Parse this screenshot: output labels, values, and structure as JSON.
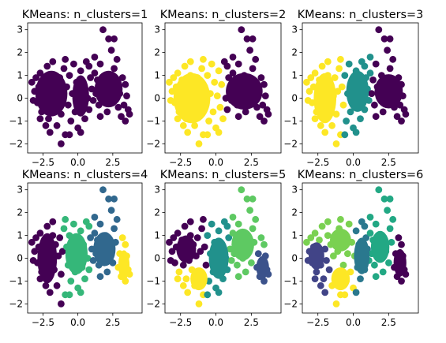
{
  "chart_data": [
    {
      "type": "scatter",
      "title": "KMeans: n_clusters=1",
      "n_clusters": 1,
      "xlim": [
        -3.6,
        4.6
      ],
      "ylim": [
        -2.4,
        3.3
      ],
      "xticks": [
        -2.5,
        0.0,
        2.5
      ],
      "xtick_labels": [
        "−2.5",
        "0.0",
        "2.5"
      ],
      "yticks": [
        -2,
        -1,
        0,
        1,
        2,
        3
      ],
      "ytick_labels": [
        "−2",
        "−1",
        "0",
        "1",
        "2",
        "3"
      ],
      "cluster_colors": [
        "#440154"
      ],
      "grid": false
    },
    {
      "type": "scatter",
      "title": "KMeans: n_clusters=2",
      "n_clusters": 2,
      "xlim": [
        -3.6,
        4.6
      ],
      "ylim": [
        -2.4,
        3.3
      ],
      "xticks": [
        -2.5,
        0.0,
        2.5
      ],
      "xtick_labels": [
        "−2.5",
        "0.0",
        "2.5"
      ],
      "yticks": [
        -2,
        -1,
        0,
        1,
        2,
        3
      ],
      "ytick_labels": [
        "−2",
        "−1",
        "0",
        "1",
        "2",
        "3"
      ],
      "cluster_colors": [
        "#440154",
        "#fde725"
      ],
      "grid": false
    },
    {
      "type": "scatter",
      "title": "KMeans: n_clusters=3",
      "n_clusters": 3,
      "xlim": [
        -3.6,
        4.6
      ],
      "ylim": [
        -2.4,
        3.3
      ],
      "xticks": [
        -2.5,
        0.0,
        2.5
      ],
      "xtick_labels": [
        "−2.5",
        "0.0",
        "2.5"
      ],
      "yticks": [
        -2,
        -1,
        0,
        1,
        2,
        3
      ],
      "ytick_labels": [
        "−2",
        "−1",
        "0",
        "1",
        "2",
        "3"
      ],
      "cluster_colors": [
        "#440154",
        "#21918c",
        "#fde725"
      ],
      "grid": false
    },
    {
      "type": "scatter",
      "title": "KMeans: n_clusters=4",
      "n_clusters": 4,
      "xlim": [
        -3.6,
        4.6
      ],
      "ylim": [
        -2.4,
        3.3
      ],
      "xticks": [
        -2.5,
        0.0,
        2.5
      ],
      "xtick_labels": [
        "−2.5",
        "0.0",
        "2.5"
      ],
      "yticks": [
        -2,
        -1,
        0,
        1,
        2,
        3
      ],
      "ytick_labels": [
        "−2",
        "−1",
        "0",
        "1",
        "2",
        "3"
      ],
      "cluster_colors": [
        "#440154",
        "#31688e",
        "#35b779",
        "#fde725"
      ],
      "grid": false
    },
    {
      "type": "scatter",
      "title": "KMeans: n_clusters=5",
      "n_clusters": 5,
      "xlim": [
        -3.6,
        4.6
      ],
      "ylim": [
        -2.4,
        3.3
      ],
      "xticks": [
        -2.5,
        0.0,
        2.5
      ],
      "xtick_labels": [
        "−2.5",
        "0.0",
        "2.5"
      ],
      "yticks": [
        -2,
        -1,
        0,
        1,
        2,
        3
      ],
      "ytick_labels": [
        "−2",
        "−1",
        "0",
        "1",
        "2",
        "3"
      ],
      "cluster_colors": [
        "#440154",
        "#3b528b",
        "#21918c",
        "#5ec962",
        "#fde725"
      ],
      "grid": false
    },
    {
      "type": "scatter",
      "title": "KMeans: n_clusters=6",
      "n_clusters": 6,
      "xlim": [
        -3.6,
        4.6
      ],
      "ylim": [
        -2.4,
        3.3
      ],
      "xticks": [
        -2.5,
        0.0,
        2.5
      ],
      "xtick_labels": [
        "−2.5",
        "0.0",
        "2.5"
      ],
      "yticks": [
        -2,
        -1,
        0,
        1,
        2,
        3
      ],
      "ytick_labels": [
        "−2",
        "−1",
        "0",
        "1",
        "2",
        "3"
      ],
      "cluster_colors": [
        "#440154",
        "#414487",
        "#2a788e",
        "#22a884",
        "#7ad151",
        "#fde725"
      ],
      "grid": false
    }
  ],
  "points": [
    [
      -3.3,
      0.7
    ],
    [
      -3.1,
      0.3
    ],
    [
      -3.0,
      0.9
    ],
    [
      -2.9,
      -0.2
    ],
    [
      -2.8,
      0.5
    ],
    [
      -2.7,
      1.1
    ],
    [
      -2.6,
      -0.6
    ],
    [
      -2.5,
      0.2
    ],
    [
      -2.4,
      0.8
    ],
    [
      -2.3,
      -0.3
    ],
    [
      -2.2,
      1.4
    ],
    [
      -2.1,
      -0.9
    ],
    [
      -2.0,
      0.4
    ],
    [
      -1.9,
      -0.1
    ],
    [
      -1.8,
      1.0
    ],
    [
      -1.7,
      -0.5
    ],
    [
      -1.6,
      0.6
    ],
    [
      -1.5,
      -1.2
    ],
    [
      -1.4,
      0.1
    ],
    [
      -1.3,
      0.9
    ],
    [
      -1.2,
      -0.7
    ],
    [
      -1.1,
      0.3
    ],
    [
      -1.0,
      1.3
    ],
    [
      -0.9,
      -1.6
    ],
    [
      -0.8,
      0.5
    ],
    [
      -0.7,
      -0.3
    ],
    [
      -0.6,
      1.0
    ],
    [
      -0.5,
      -1.0
    ],
    [
      -0.4,
      0.2
    ],
    [
      -0.3,
      1.5
    ],
    [
      -0.2,
      -0.6
    ],
    [
      -0.1,
      0.7
    ],
    [
      0.0,
      -1.3
    ],
    [
      0.1,
      0.1
    ],
    [
      0.2,
      1.2
    ],
    [
      0.3,
      -0.4
    ],
    [
      0.4,
      0.6
    ],
    [
      0.5,
      -0.9
    ],
    [
      0.6,
      1.6
    ],
    [
      0.7,
      0.0
    ],
    [
      0.8,
      -0.5
    ],
    [
      0.9,
      0.9
    ],
    [
      1.0,
      0.4
    ],
    [
      1.1,
      -0.1
    ],
    [
      1.2,
      1.1
    ],
    [
      1.3,
      0.2
    ],
    [
      1.4,
      0.8
    ],
    [
      1.5,
      -0.3
    ],
    [
      1.6,
      1.5
    ],
    [
      1.7,
      0.5
    ],
    [
      1.8,
      3.0
    ],
    [
      1.9,
      0.0
    ],
    [
      2.0,
      1.0
    ],
    [
      2.1,
      -0.6
    ],
    [
      2.2,
      2.6
    ],
    [
      2.3,
      0.3
    ],
    [
      2.4,
      2.1
    ],
    [
      2.5,
      -0.2
    ],
    [
      2.6,
      1.3
    ],
    [
      2.7,
      0.7
    ],
    [
      2.8,
      1.7
    ],
    [
      2.9,
      -0.4
    ],
    [
      3.0,
      0.2
    ],
    [
      3.1,
      -0.8
    ],
    [
      3.2,
      0.9
    ],
    [
      3.3,
      -0.3
    ],
    [
      3.4,
      -1.0
    ],
    [
      3.5,
      0.1
    ],
    [
      3.6,
      -0.5
    ],
    [
      3.7,
      -0.7
    ],
    [
      -1.2,
      -2.0
    ],
    [
      -0.6,
      -1.6
    ],
    [
      0.2,
      -1.5
    ],
    [
      1.2,
      1.8
    ],
    [
      -1.8,
      1.6
    ],
    [
      -2.3,
      -1.2
    ],
    [
      -3.2,
      -0.1
    ],
    [
      -2.0,
      -1.5
    ],
    [
      0.8,
      1.4
    ],
    [
      2.6,
      2.6
    ],
    [
      -0.9,
      1.7
    ],
    [
      1.6,
      -0.8
    ],
    [
      -2.7,
      -0.9
    ],
    [
      3.4,
      0.6
    ]
  ]
}
